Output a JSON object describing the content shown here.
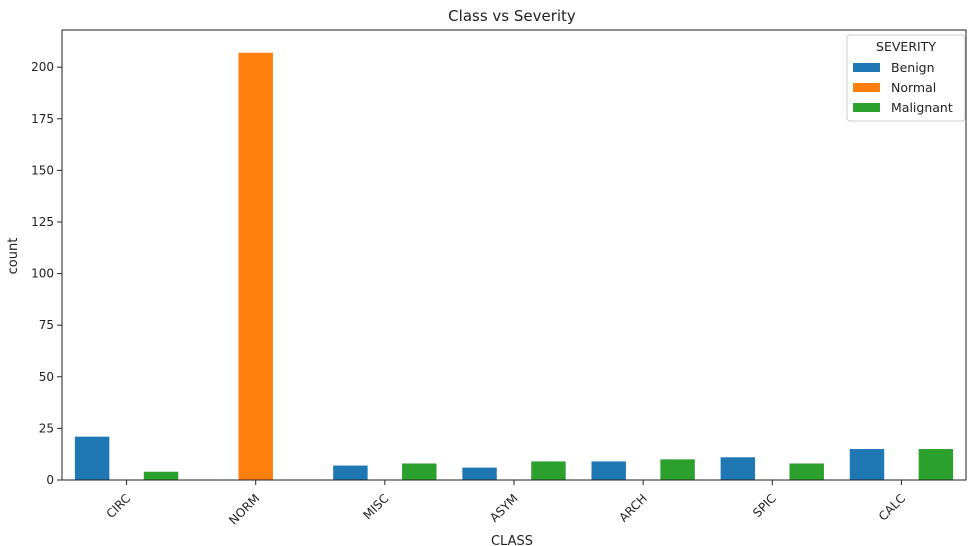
{
  "chart_data": {
    "type": "bar",
    "title": "Class vs Severity",
    "xlabel": "CLASS",
    "ylabel": "count",
    "categories": [
      "CIRC",
      "NORM",
      "MISC",
      "ASYM",
      "ARCH",
      "SPIC",
      "CALC"
    ],
    "ylim": [
      0,
      218
    ],
    "yticks": [
      0,
      25,
      50,
      75,
      100,
      125,
      150,
      175,
      200
    ],
    "legend": {
      "title": "SEVERITY",
      "placement": "top-right"
    },
    "series": [
      {
        "name": "Benign",
        "color": "#1f77b4",
        "values": [
          21,
          null,
          7,
          6,
          9,
          11,
          15
        ]
      },
      {
        "name": "Normal",
        "color": "#ff7f0e",
        "values": [
          null,
          207,
          null,
          null,
          null,
          null,
          null
        ]
      },
      {
        "name": "Malignant",
        "color": "#2ca02c",
        "values": [
          4,
          null,
          8,
          9,
          10,
          8,
          15
        ]
      }
    ],
    "grid": false
  }
}
